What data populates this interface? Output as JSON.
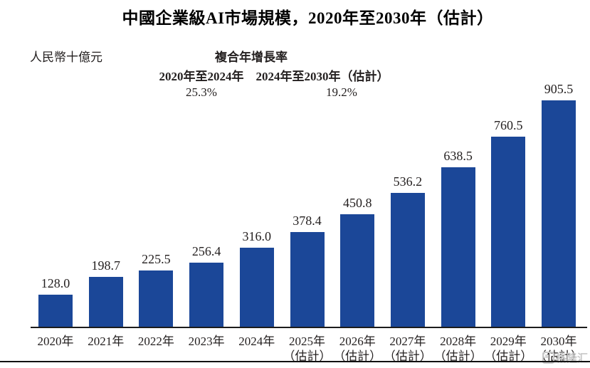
{
  "page": {
    "watermark_text": "格隆汇"
  },
  "chart_data": {
    "type": "bar",
    "title": "中國企業級AI市場規模，2020年至2030年（估計）",
    "ylabel": "人民幣十億元",
    "categories": [
      "2020年",
      "2021年",
      "2022年",
      "2023年",
      "2024年",
      "2025年",
      "2026年",
      "2027年",
      "2028年",
      "2029年",
      "2030年"
    ],
    "category_sublabels": [
      "",
      "",
      "",
      "",
      "",
      "（估計）",
      "（估計）",
      "（估計）",
      "（估計）",
      "（估計）",
      "（估計）"
    ],
    "values": [
      128.0,
      198.7,
      225.5,
      256.4,
      316.0,
      378.4,
      450.8,
      536.2,
      638.5,
      760.5,
      905.5
    ],
    "value_labels": [
      "128.0",
      "198.7",
      "225.5",
      "256.4",
      "316.0",
      "378.4",
      "450.8",
      "536.2",
      "638.5",
      "760.5",
      "905.5"
    ],
    "ylim": [
      0,
      905.5
    ],
    "bar_color": "#1b4798",
    "grid": "off",
    "legend": "none",
    "cagr": {
      "header": "複合年增長率",
      "periods": [
        {
          "label": "2020年至2024年",
          "value": "25.3%"
        },
        {
          "label": "2024年至2030年（估計）",
          "value": "19.2%"
        }
      ]
    }
  }
}
